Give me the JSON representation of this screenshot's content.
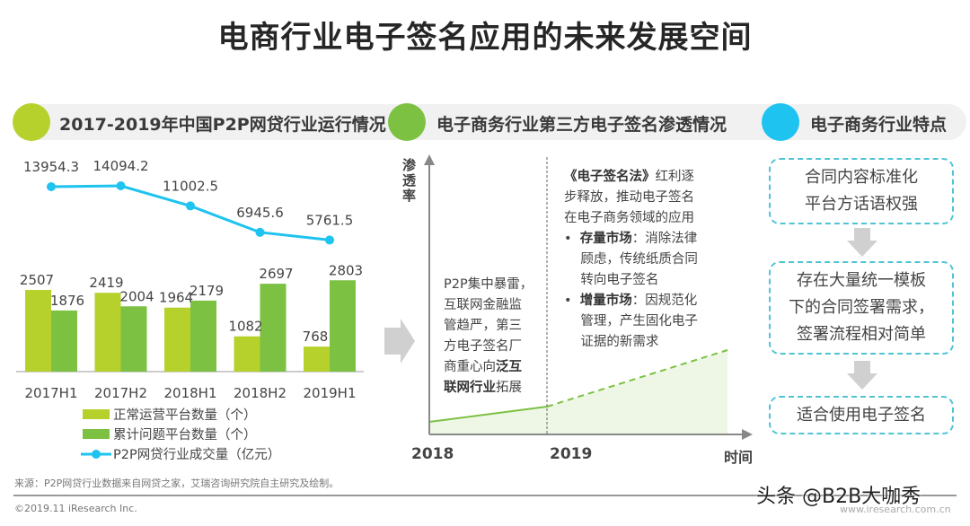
{
  "title": "电商行业电子签名应用的未来发展空间",
  "headers": [
    {
      "label": "2017-2019年中国P2P网贷行业运行情况",
      "color": "#b6d12b"
    },
    {
      "label": "电子商务行业第三方电子签名渗透情况",
      "color": "#7cc142"
    },
    {
      "label": "电子商务行业特点",
      "color": "#1fc3ef"
    }
  ],
  "chart_data": {
    "type": "bar+line",
    "categories": [
      "2017H1",
      "2017H2",
      "2018H1",
      "2018H2",
      "2019H1"
    ],
    "series": [
      {
        "name": "正常运营平台数量（个）",
        "type": "bar",
        "color": "#b6d12b",
        "values": [
          2507,
          2419,
          1964,
          1082,
          768
        ],
        "labels": [
          "2507",
          "2419",
          "1964",
          "1082",
          "768"
        ]
      },
      {
        "name": "累计问题平台数量（个）",
        "type": "bar",
        "color": "#7cc142",
        "values": [
          1876,
          2004,
          2179,
          2697,
          2803
        ],
        "labels": [
          "1876",
          "2004",
          "2179",
          "2697",
          "2803"
        ]
      },
      {
        "name": "P2P网贷行业成交量（亿元）",
        "type": "line",
        "color": "#1fc3ef",
        "values": [
          13954.3,
          14094.2,
          11002.5,
          6945.6,
          5761.5
        ],
        "labels": [
          "13954.3",
          "14094.2",
          "11002.5",
          "6945.6",
          "5761.5"
        ]
      }
    ],
    "legend": "bottom"
  },
  "penetration": {
    "ylabel": "渗透率",
    "xlabel": "时间",
    "x_ticks": [
      "2018",
      "2019"
    ],
    "left_text": [
      [
        {
          "t": "P2P集中暴雷，"
        }
      ],
      [
        {
          "t": "互联网金融监"
        }
      ],
      [
        {
          "t": "管趋严，第三"
        }
      ],
      [
        {
          "t": "方电子签名厂"
        }
      ],
      [
        {
          "t": "商重心向"
        },
        {
          "t": "泛互",
          "b": true
        }
      ],
      [
        {
          "t": "联网行业",
          "b": true
        },
        {
          "t": "拓展"
        }
      ]
    ],
    "right_text": [
      [
        {
          "t": "《电子签名法》",
          "b": true
        },
        {
          "t": "红利逐"
        }
      ],
      [
        {
          "t": "步释放，推动电子签名"
        }
      ],
      [
        {
          "t": "在电子商务领域的应用"
        }
      ],
      [
        {
          "t": "•  "
        },
        {
          "t": "存量市场",
          "b": true
        },
        {
          "t": "：消除法律"
        }
      ],
      [
        {
          "t": "    顾虑，传统纸质合同"
        }
      ],
      [
        {
          "t": "    转向电子签名"
        }
      ],
      [
        {
          "t": "•  "
        },
        {
          "t": "增量市场",
          "b": true
        },
        {
          "t": "：因规范化"
        }
      ],
      [
        {
          "t": "    管理，产生固化电子"
        }
      ],
      [
        {
          "t": "    证据的新需求"
        }
      ]
    ]
  },
  "features": {
    "box1": [
      "合同内容标准化",
      "平台方话语权强"
    ],
    "box2": [
      "存在大量统一模板",
      "下的合同签署需求，",
      "签署流程相对简单"
    ],
    "box3": [
      "适合使用电子签名"
    ]
  },
  "footer": {
    "source": "来源：P2P网贷行业数据来自网贷之家，艾瑞咨询研究院自主研究及绘制。",
    "copyright": "©2019.11 iResearch Inc.",
    "website": "www.iresearch.com.cn",
    "watermark": "头条 @B2B大咖秀"
  }
}
